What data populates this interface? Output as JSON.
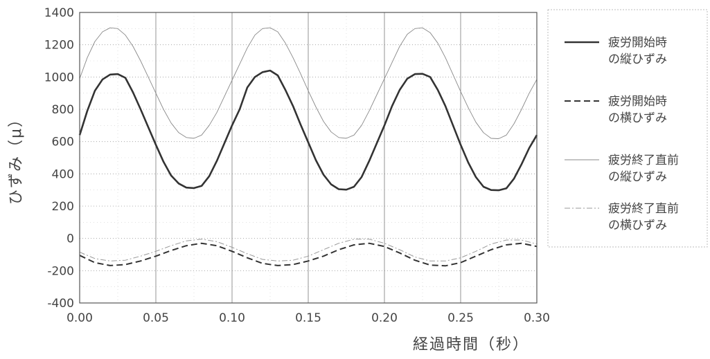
{
  "chart_data": {
    "type": "line",
    "xlabel": "経過時間（秒）",
    "ylabel": "ひずみ（μ）",
    "xlim": [
      0,
      0.3
    ],
    "ylim": [
      -400,
      1400
    ],
    "xticks": [
      "0.00",
      "0.05",
      "0.10",
      "0.15",
      "0.20",
      "0.25",
      "0.30"
    ],
    "yticks": [
      "1400",
      "1200",
      "1000",
      "800",
      "600",
      "400",
      "200",
      "0",
      "-200",
      "-400"
    ],
    "grid": true,
    "legend_placement": "right",
    "series": [
      {
        "name_lines": [
          "疲労開始時",
          "の縦ひずみ"
        ],
        "style": "solid-bold",
        "color": "#333333",
        "x": [
          0.0,
          0.005,
          0.01,
          0.015,
          0.02,
          0.025,
          0.03,
          0.035,
          0.04,
          0.045,
          0.05,
          0.055,
          0.06,
          0.065,
          0.07,
          0.075,
          0.08,
          0.085,
          0.09,
          0.095,
          0.1,
          0.105,
          0.11,
          0.115,
          0.12,
          0.125,
          0.13,
          0.135,
          0.14,
          0.145,
          0.15,
          0.155,
          0.16,
          0.165,
          0.17,
          0.175,
          0.18,
          0.185,
          0.19,
          0.195,
          0.2,
          0.205,
          0.21,
          0.215,
          0.22,
          0.225,
          0.23,
          0.235,
          0.24,
          0.245,
          0.25,
          0.255,
          0.26,
          0.265,
          0.27,
          0.275,
          0.28,
          0.285,
          0.29,
          0.295,
          0.3
        ],
        "y": [
          640,
          790,
          915,
          985,
          1015,
          1018,
          995,
          905,
          800,
          690,
          580,
          475,
          390,
          340,
          315,
          312,
          325,
          385,
          480,
          590,
          700,
          800,
          935,
          1000,
          1030,
          1040,
          1010,
          920,
          820,
          705,
          595,
          485,
          395,
          335,
          305,
          302,
          320,
          380,
          480,
          590,
          700,
          820,
          920,
          990,
          1018,
          1020,
          1000,
          920,
          820,
          700,
          580,
          470,
          380,
          320,
          300,
          298,
          310,
          370,
          460,
          560,
          640
        ]
      },
      {
        "name_lines": [
          "疲労開始時",
          "の横ひずみ"
        ],
        "style": "dashed",
        "color": "#333333",
        "x": [
          0.0,
          0.01,
          0.02,
          0.03,
          0.04,
          0.05,
          0.06,
          0.07,
          0.08,
          0.09,
          0.1,
          0.11,
          0.12,
          0.13,
          0.14,
          0.15,
          0.16,
          0.17,
          0.18,
          0.19,
          0.2,
          0.21,
          0.22,
          0.23,
          0.24,
          0.25,
          0.26,
          0.27,
          0.28,
          0.29,
          0.3
        ],
        "y": [
          -105,
          -150,
          -168,
          -162,
          -140,
          -110,
          -75,
          -45,
          -30,
          -45,
          -80,
          -120,
          -155,
          -168,
          -162,
          -140,
          -110,
          -70,
          -40,
          -30,
          -50,
          -90,
          -135,
          -165,
          -170,
          -150,
          -110,
          -70,
          -40,
          -30,
          -50
        ]
      },
      {
        "name_lines": [
          "疲労終了直前",
          "の縦ひずみ"
        ],
        "style": "thin",
        "color": "#888888",
        "x": [
          0.0,
          0.005,
          0.01,
          0.015,
          0.02,
          0.025,
          0.03,
          0.035,
          0.04,
          0.045,
          0.05,
          0.055,
          0.06,
          0.065,
          0.07,
          0.075,
          0.08,
          0.085,
          0.09,
          0.095,
          0.1,
          0.105,
          0.11,
          0.115,
          0.12,
          0.125,
          0.13,
          0.135,
          0.14,
          0.145,
          0.15,
          0.155,
          0.16,
          0.165,
          0.17,
          0.175,
          0.18,
          0.185,
          0.19,
          0.195,
          0.2,
          0.205,
          0.21,
          0.215,
          0.22,
          0.225,
          0.23,
          0.235,
          0.24,
          0.245,
          0.25,
          0.255,
          0.26,
          0.265,
          0.27,
          0.275,
          0.28,
          0.285,
          0.29,
          0.295,
          0.3
        ],
        "y": [
          990,
          1120,
          1220,
          1280,
          1305,
          1300,
          1260,
          1190,
          1100,
          1000,
          900,
          800,
          715,
          655,
          625,
          620,
          640,
          700,
          780,
          880,
          980,
          1080,
          1180,
          1260,
          1300,
          1305,
          1280,
          1210,
          1120,
          1020,
          915,
          815,
          725,
          660,
          625,
          620,
          640,
          700,
          790,
          890,
          990,
          1090,
          1190,
          1265,
          1300,
          1305,
          1275,
          1210,
          1120,
          1015,
          910,
          810,
          720,
          655,
          620,
          618,
          640,
          710,
          800,
          900,
          985
        ]
      },
      {
        "name_lines": [
          "疲労終了直前",
          "の横ひずみ"
        ],
        "style": "dashdot",
        "color": "#999999",
        "x": [
          0.0,
          0.01,
          0.02,
          0.03,
          0.04,
          0.05,
          0.06,
          0.07,
          0.08,
          0.09,
          0.1,
          0.11,
          0.12,
          0.13,
          0.14,
          0.15,
          0.16,
          0.17,
          0.18,
          0.19,
          0.2,
          0.21,
          0.22,
          0.23,
          0.24,
          0.25,
          0.26,
          0.27,
          0.28,
          0.29,
          0.3
        ],
        "y": [
          -85,
          -125,
          -140,
          -135,
          -110,
          -80,
          -45,
          -15,
          -5,
          -20,
          -55,
          -95,
          -130,
          -140,
          -135,
          -110,
          -70,
          -30,
          -5,
          -5,
          -30,
          -70,
          -115,
          -140,
          -140,
          -120,
          -80,
          -35,
          -10,
          -10,
          -35
        ]
      }
    ]
  }
}
